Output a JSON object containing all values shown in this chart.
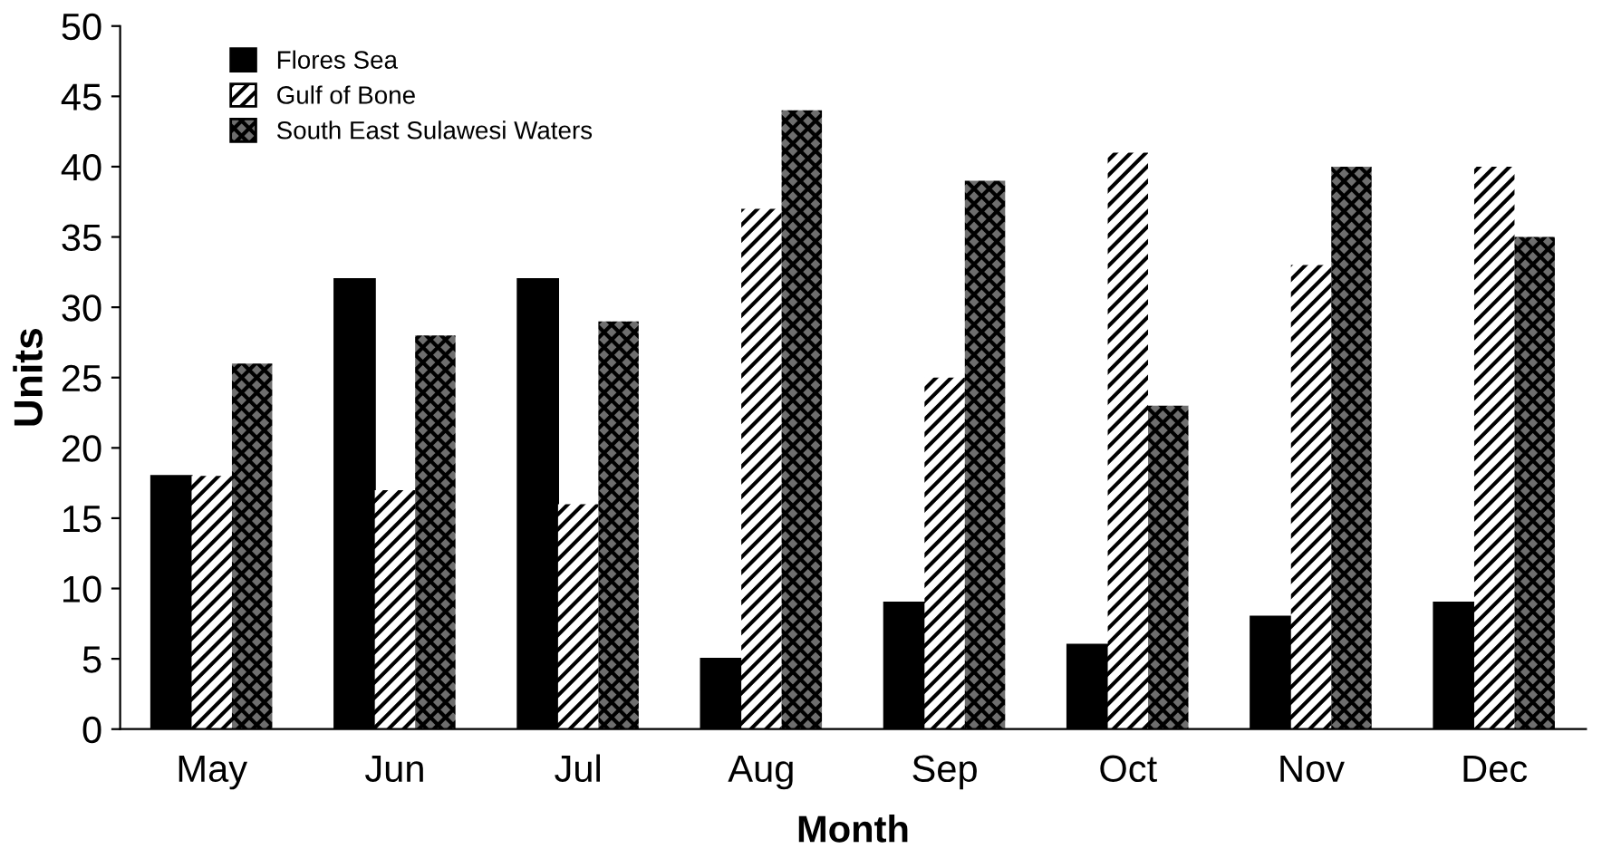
{
  "chart_data": {
    "type": "bar",
    "xlabel": "Month",
    "ylabel": "Units",
    "categories": [
      "May",
      "Jun",
      "Jul",
      "Aug",
      "Sep",
      "Oct",
      "Nov",
      "Dec"
    ],
    "series": [
      {
        "name": "Flores Sea",
        "color": "#000000",
        "values": [
          18,
          32,
          32,
          5,
          9,
          6,
          8,
          9
        ]
      },
      {
        "name": "Gulf of Bone",
        "color": "#ffffff",
        "values": [
          18,
          17,
          16,
          37,
          25,
          41,
          33,
          40
        ]
      },
      {
        "name": "South East Sulawesi Waters",
        "color": "#6e6e6e",
        "values": [
          26,
          28,
          29,
          44,
          39,
          23,
          40,
          35
        ]
      }
    ],
    "ylim": [
      0,
      50
    ],
    "yticks": [
      0,
      5,
      10,
      15,
      20,
      25,
      30,
      35,
      40,
      45,
      50
    ],
    "grid": false,
    "legend": "top left"
  }
}
